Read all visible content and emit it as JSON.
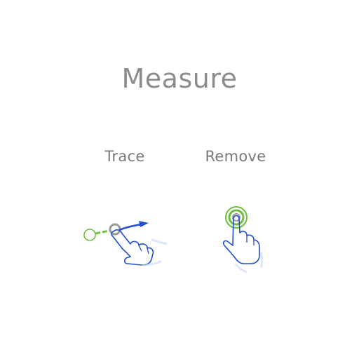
{
  "title": "Measure",
  "gestures": [
    {
      "label": "Trace",
      "icon": "trace-gesture-icon"
    },
    {
      "label": "Remove",
      "icon": "long-press-gesture-icon"
    }
  ],
  "colors": {
    "title": "#8c8c8c",
    "label": "#7a7a7a",
    "hand_stroke": "#1f4fd6",
    "point_green": "#6cbf3c",
    "point_gray": "#9a9a9a"
  }
}
